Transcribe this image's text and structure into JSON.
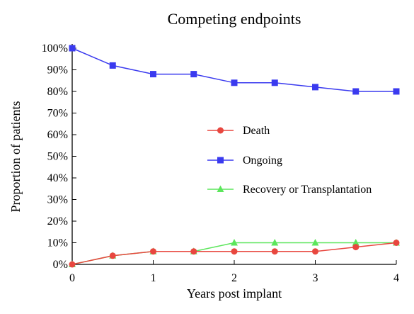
{
  "chart_data": {
    "type": "line",
    "title": "Competing  endpoints",
    "xlabel": "Years post implant",
    "ylabel": "Proportion of patients",
    "x": [
      0,
      0.5,
      1,
      1.5,
      2,
      2.5,
      3,
      3.5,
      4
    ],
    "xlim": [
      0,
      4
    ],
    "ylim": [
      0,
      100
    ],
    "x_ticks": [
      0,
      1,
      2,
      3,
      4
    ],
    "x_tick_labels": [
      "0",
      "1",
      "2",
      "3",
      "4"
    ],
    "y_ticks": [
      0,
      10,
      20,
      30,
      40,
      50,
      60,
      70,
      80,
      90,
      100
    ],
    "y_tick_labels": [
      "0%",
      "10%",
      "20%",
      "30%",
      "40%",
      "50%",
      "60%",
      "70%",
      "80%",
      "90%",
      "100%"
    ],
    "grid": false,
    "legend_position": "center-right",
    "series": [
      {
        "name": "Death",
        "color": "#e8473f",
        "marker": "circle",
        "values": [
          0,
          4,
          6,
          6,
          6,
          6,
          6,
          8,
          10
        ]
      },
      {
        "name": "Ongoing",
        "color": "#3a3aef",
        "marker": "square",
        "values": [
          100,
          92,
          88,
          88,
          84,
          84,
          82,
          80,
          80
        ]
      },
      {
        "name": "Recovery or Transplantation",
        "color": "#5ce65c",
        "marker": "triangle",
        "values": [
          0,
          4,
          6,
          6,
          10,
          10,
          10,
          10,
          10
        ]
      }
    ]
  }
}
